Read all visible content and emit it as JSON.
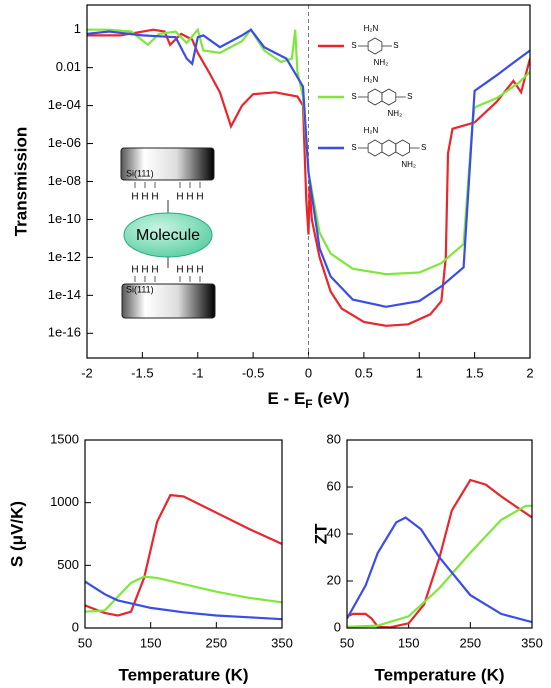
{
  "chart_data": [
    {
      "type": "line",
      "log_y": true,
      "xlabel": {
        "main": "E - E",
        "sub": "F",
        "unit": " (eV)"
      },
      "ylabel": "Transmission",
      "xlim": [
        -2,
        2
      ],
      "xticks": [
        -2,
        -1.5,
        -1,
        -0.5,
        0,
        0.5,
        1,
        1.5,
        2
      ],
      "ylim": [
        5e-18,
        20
      ],
      "yticks": [
        1,
        0.01,
        {
          "value": 0.0001,
          "label": "1e-04"
        },
        {
          "value": 1e-06,
          "label": "1e-06"
        },
        {
          "value": 1e-08,
          "label": "1e-08"
        },
        {
          "value": 1e-10,
          "label": "1e-10"
        },
        {
          "value": 1e-12,
          "label": "1e-12"
        },
        {
          "value": 1e-14,
          "label": "1e-14"
        },
        {
          "value": 1e-16,
          "label": "1e-16"
        }
      ],
      "reference_line_x": 0,
      "series": [
        {
          "color": "#e8262b",
          "x": [
            -2,
            -1.7,
            -1.4,
            -1.3,
            -1.25,
            -1.15,
            -1.05,
            -1.0,
            -0.9,
            -0.8,
            -0.7,
            -0.6,
            -0.5,
            -0.3,
            -0.1,
            -0.05,
            -0.02,
            0,
            0.01,
            0.03,
            0.1,
            0.2,
            0.3,
            0.5,
            0.7,
            0.9,
            1.1,
            1.2,
            1.24,
            1.26,
            1.3,
            1.5,
            1.7,
            1.85,
            1.92,
            2.0
          ],
          "values": [
            0.5,
            0.5,
            1,
            0.8,
            0.16,
            0.6,
            0.3,
            0.06,
            0.006,
            0.0005,
            8e-06,
            0.0001,
            0.0004,
            0.0005,
            0.0003,
            0.0001,
            1e-09,
            1.6e-11,
            6e-09,
            1e-10,
            1e-12,
            1.6e-14,
            2e-15,
            4e-16,
            2.5e-16,
            3e-16,
            1e-15,
            5e-15,
            1e-12,
            3e-07,
            6e-06,
            1.3e-05,
            0.00016,
            0.002,
            0.0005,
            0.03
          ]
        },
        {
          "color": "#7ee83a",
          "x": [
            -2,
            -1.8,
            -1.6,
            -1.45,
            -1.35,
            -1.2,
            -1.1,
            -1.0,
            -0.95,
            -0.8,
            -0.6,
            -0.52,
            -0.4,
            -0.25,
            -0.15,
            -0.12,
            -0.1,
            -0.05,
            0,
            0.1,
            0.2,
            0.4,
            0.7,
            1.0,
            1.2,
            1.4,
            1.48,
            1.5,
            1.7,
            1.9,
            2.0
          ],
          "values": [
            1,
            1,
            0.8,
            0.16,
            0.6,
            0.8,
            0.2,
            1,
            0.08,
            0.06,
            0.25,
            1,
            0.08,
            0.02,
            0.03,
            1,
            0.006,
            0.0003,
            3e-08,
            2e-11,
            1.6e-12,
            2.5e-13,
            1.3e-13,
            1.6e-13,
            5e-13,
            5e-12,
            1e-05,
            8e-05,
            0.00025,
            0.0016,
            0.006
          ]
        },
        {
          "color": "#3a4de8",
          "x": [
            -2,
            -1.8,
            -1.5,
            -1.2,
            -1.1,
            -1.05,
            -1.0,
            -0.95,
            -0.8,
            -0.6,
            -0.52,
            -0.4,
            -0.2,
            -0.05,
            0,
            0.1,
            0.2,
            0.4,
            0.7,
            1.0,
            1.2,
            1.4,
            1.47,
            1.5,
            1.7,
            1.9,
            2.0
          ],
          "values": [
            0.6,
            0.8,
            0.5,
            0.4,
            0.03,
            0.016,
            0.4,
            0.5,
            0.12,
            0.5,
            1,
            0.12,
            0.03,
            0.001,
            3e-08,
            3e-12,
            1e-13,
            6e-15,
            2.5e-15,
            5e-15,
            3e-14,
            3e-13,
            1e-06,
            0.0006,
            0.004,
            0.03,
            0.08
          ]
        }
      ],
      "structures": [
        {
          "rings": 1,
          "labels": [
            "H₂N",
            "NH₂",
            "S",
            "S"
          ]
        },
        {
          "rings": 2,
          "labels": [
            "H₂N",
            "NH₂",
            "S",
            "S"
          ]
        },
        {
          "rings": 3,
          "labels": [
            "H₂N",
            "NH₂",
            "S",
            "S"
          ]
        }
      ],
      "inset": {
        "top_label": "Si(111)",
        "bottom_label": "Si(111)",
        "molecule": "Molecule",
        "atom": "H"
      }
    },
    {
      "type": "line",
      "xlabel": "Temperature (K)",
      "ylabel": "S (μV/K)",
      "xlim": [
        50,
        350
      ],
      "xticks": [
        50,
        150,
        250,
        350
      ],
      "ylim": [
        0,
        1500
      ],
      "yticks": [
        0,
        500,
        1000,
        1500
      ],
      "series": [
        {
          "color": "#e8262b",
          "x": [
            50,
            80,
            100,
            120,
            140,
            160,
            180,
            200,
            250,
            300,
            350
          ],
          "values": [
            180,
            120,
            100,
            130,
            400,
            850,
            1060,
            1050,
            920,
            790,
            670
          ]
        },
        {
          "color": "#7ee83a",
          "x": [
            50,
            80,
            100,
            120,
            140,
            160,
            200,
            250,
            300,
            350
          ],
          "values": [
            130,
            140,
            250,
            360,
            410,
            400,
            350,
            290,
            240,
            205
          ]
        },
        {
          "color": "#3a4de8",
          "x": [
            50,
            80,
            100,
            150,
            200,
            250,
            300,
            350
          ],
          "values": [
            370,
            270,
            220,
            160,
            125,
            100,
            85,
            70
          ]
        }
      ]
    },
    {
      "type": "line",
      "xlabel": "Temperature (K)",
      "ylabel": "ZT",
      "xlim": [
        50,
        350
      ],
      "xticks": [
        50,
        150,
        250,
        350
      ],
      "ylim": [
        0,
        80
      ],
      "yticks": [
        0,
        20,
        40,
        60,
        80
      ],
      "series": [
        {
          "color": "#e8262b",
          "x": [
            50,
            60,
            80,
            90,
            100,
            120,
            150,
            175,
            200,
            220,
            250,
            275,
            300,
            350
          ],
          "values": [
            5,
            6,
            6,
            4,
            0.5,
            0.3,
            2,
            10,
            30,
            50,
            63,
            61,
            56,
            47
          ]
        },
        {
          "color": "#7ee83a",
          "x": [
            50,
            100,
            150,
            200,
            250,
            300,
            340,
            350
          ],
          "values": [
            0.5,
            1,
            5,
            17,
            32,
            46,
            52,
            52
          ]
        },
        {
          "color": "#3a4de8",
          "x": [
            50,
            80,
            100,
            130,
            145,
            170,
            200,
            250,
            300,
            350
          ],
          "values": [
            4,
            18,
            32,
            45,
            47,
            42,
            30,
            14,
            6,
            2.5
          ]
        }
      ]
    }
  ]
}
